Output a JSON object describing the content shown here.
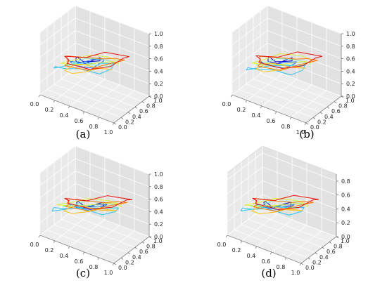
{
  "chart_data": [
    {
      "panel": "(a)",
      "type": "line3d",
      "xlim": [
        0,
        1
      ],
      "ylim": [
        0,
        1
      ],
      "zlim": [
        0,
        1
      ],
      "xticks": [
        "0.0",
        "0.2",
        "0.4",
        "0.6",
        "0.8",
        "1.0"
      ],
      "yticks": [
        "0.0",
        "0.2",
        "0.4",
        "0.6",
        "0.8",
        "1.0"
      ],
      "zticks": [
        "0.0",
        "0.2",
        "0.4",
        "0.6",
        "0.8",
        "1.0"
      ],
      "grid": true,
      "colormap": [
        "#0000cc",
        "#1e6fff",
        "#29c5f6",
        "#7df0c8",
        "#d9f03a",
        "#ffc21a",
        "#ff7a00",
        "#e8120c"
      ],
      "series": [
        {
          "color": "#0000cc",
          "center": [
            0.42,
            0.45,
            0.55
          ],
          "radius": 0.16,
          "tilt": 0.1
        },
        {
          "color": "#1e6fff",
          "center": [
            0.4,
            0.45,
            0.5
          ],
          "radius": 0.22,
          "tilt": 0.18
        },
        {
          "color": "#29c5f6",
          "center": [
            0.38,
            0.45,
            0.42
          ],
          "radius": 0.38,
          "tilt": 0.28
        },
        {
          "color": "#7df0c8",
          "center": [
            0.45,
            0.48,
            0.5
          ],
          "radius": 0.3,
          "tilt": 0.22
        },
        {
          "color": "#d9f03a",
          "center": [
            0.5,
            0.5,
            0.55
          ],
          "radius": 0.34,
          "tilt": 0.26
        },
        {
          "color": "#ffc21a",
          "center": [
            0.42,
            0.48,
            0.4
          ],
          "radius": 0.26,
          "tilt": 0.2
        },
        {
          "color": "#ff7a00",
          "center": [
            0.45,
            0.5,
            0.52
          ],
          "radius": 0.36,
          "tilt": 0.3
        },
        {
          "color": "#e8120c",
          "center": [
            0.48,
            0.52,
            0.55
          ],
          "radius": 0.4,
          "tilt": 0.34
        }
      ]
    },
    {
      "panel": "(b)",
      "type": "line3d",
      "xlim": [
        0,
        1
      ],
      "ylim": [
        0,
        1
      ],
      "zlim": [
        0,
        1
      ],
      "xticks": [
        "0.0",
        "0.2",
        "0.4",
        "0.6",
        "0.8",
        "1.0"
      ],
      "yticks": [
        "0.0",
        "0.2",
        "0.4",
        "0.6",
        "0.8",
        "1.0"
      ],
      "zticks": [
        "0.0",
        "0.2",
        "0.4",
        "0.6",
        "0.8",
        "1.0"
      ],
      "grid": true,
      "colormap": [
        "#0000cc",
        "#1e6fff",
        "#29c5f6",
        "#7df0c8",
        "#d9f03a",
        "#ffc21a",
        "#ff7a00",
        "#e8120c"
      ],
      "series": [
        {
          "color": "#0000cc",
          "center": [
            0.42,
            0.45,
            0.55
          ],
          "radius": 0.16,
          "tilt": 0.1
        },
        {
          "color": "#1e6fff",
          "center": [
            0.4,
            0.45,
            0.48
          ],
          "radius": 0.23,
          "tilt": 0.16
        },
        {
          "color": "#29c5f6",
          "center": [
            0.38,
            0.44,
            0.4
          ],
          "radius": 0.37,
          "tilt": 0.26
        },
        {
          "color": "#7df0c8",
          "center": [
            0.45,
            0.48,
            0.5
          ],
          "radius": 0.31,
          "tilt": 0.22
        },
        {
          "color": "#d9f03a",
          "center": [
            0.5,
            0.5,
            0.56
          ],
          "radius": 0.35,
          "tilt": 0.28
        },
        {
          "color": "#ffc21a",
          "center": [
            0.42,
            0.48,
            0.42
          ],
          "radius": 0.27,
          "tilt": 0.2
        },
        {
          "color": "#ff7a00",
          "center": [
            0.46,
            0.5,
            0.52
          ],
          "radius": 0.36,
          "tilt": 0.3
        },
        {
          "color": "#e8120c",
          "center": [
            0.48,
            0.52,
            0.56
          ],
          "radius": 0.41,
          "tilt": 0.34
        }
      ]
    },
    {
      "panel": "(c)",
      "type": "line3d",
      "xlim": [
        0,
        1
      ],
      "ylim": [
        0,
        1
      ],
      "zlim": [
        0,
        1
      ],
      "xticks": [
        "0.0",
        "0.2",
        "0.4",
        "0.6",
        "0.8",
        "1.0"
      ],
      "yticks": [
        "0.0",
        "0.2",
        "0.4",
        "0.6",
        "0.8",
        "1.0"
      ],
      "zticks": [
        "0.0",
        "0.2",
        "0.4",
        "0.6",
        "0.8",
        "1.0"
      ],
      "grid": true,
      "colormap": [
        "#0000cc",
        "#1e6fff",
        "#29c5f6",
        "#7df0c8",
        "#d9f03a",
        "#ffc21a",
        "#ff7a00",
        "#e8120c"
      ],
      "series": [
        {
          "color": "#0000cc",
          "center": [
            0.45,
            0.45,
            0.5
          ],
          "radius": 0.18,
          "tilt": 0.1
        },
        {
          "color": "#1e6fff",
          "center": [
            0.42,
            0.45,
            0.46
          ],
          "radius": 0.24,
          "tilt": 0.16
        },
        {
          "color": "#29c5f6",
          "center": [
            0.4,
            0.45,
            0.4
          ],
          "radius": 0.42,
          "tilt": 0.26
        },
        {
          "color": "#7df0c8",
          "center": [
            0.46,
            0.48,
            0.48
          ],
          "radius": 0.33,
          "tilt": 0.22
        },
        {
          "color": "#d9f03a",
          "center": [
            0.5,
            0.5,
            0.52
          ],
          "radius": 0.38,
          "tilt": 0.26
        },
        {
          "color": "#ffc21a",
          "center": [
            0.44,
            0.48,
            0.4
          ],
          "radius": 0.29,
          "tilt": 0.2
        },
        {
          "color": "#ff7a00",
          "center": [
            0.47,
            0.5,
            0.5
          ],
          "radius": 0.37,
          "tilt": 0.28
        },
        {
          "color": "#e8120c",
          "center": [
            0.5,
            0.52,
            0.54
          ],
          "radius": 0.42,
          "tilt": 0.32
        }
      ]
    },
    {
      "panel": "(d)",
      "type": "line3d",
      "xlim": [
        0,
        1
      ],
      "ylim": [
        0,
        1
      ],
      "zlim": [
        0,
        0.9
      ],
      "xticks": [
        "0.0",
        "0.2",
        "0.4",
        "0.6",
        "0.8",
        "1.0"
      ],
      "yticks": [
        "0.0",
        "0.2",
        "0.4",
        "0.6",
        "0.8",
        "1.0"
      ],
      "zticks": [
        "0.0",
        "0.2",
        "0.4",
        "0.6",
        "0.8"
      ],
      "grid": true,
      "colormap": [
        "#0000cc",
        "#1e6fff",
        "#29c5f6",
        "#7df0c8",
        "#d9f03a",
        "#ffc21a",
        "#ff7a00",
        "#e8120c"
      ],
      "series": [
        {
          "color": "#0000cc",
          "center": [
            0.45,
            0.45,
            0.5
          ],
          "radius": 0.18,
          "tilt": 0.1
        },
        {
          "color": "#1e6fff",
          "center": [
            0.42,
            0.45,
            0.46
          ],
          "radius": 0.24,
          "tilt": 0.16
        },
        {
          "color": "#29c5f6",
          "center": [
            0.4,
            0.45,
            0.4
          ],
          "radius": 0.4,
          "tilt": 0.26
        },
        {
          "color": "#7df0c8",
          "center": [
            0.46,
            0.48,
            0.48
          ],
          "radius": 0.32,
          "tilt": 0.22
        },
        {
          "color": "#d9f03a",
          "center": [
            0.5,
            0.5,
            0.52
          ],
          "radius": 0.37,
          "tilt": 0.26
        },
        {
          "color": "#ffc21a",
          "center": [
            0.44,
            0.48,
            0.4
          ],
          "radius": 0.28,
          "tilt": 0.2
        },
        {
          "color": "#ff7a00",
          "center": [
            0.47,
            0.5,
            0.5
          ],
          "radius": 0.36,
          "tilt": 0.28
        },
        {
          "color": "#e8120c",
          "center": [
            0.5,
            0.52,
            0.54
          ],
          "radius": 0.41,
          "tilt": 0.32
        }
      ]
    }
  ]
}
